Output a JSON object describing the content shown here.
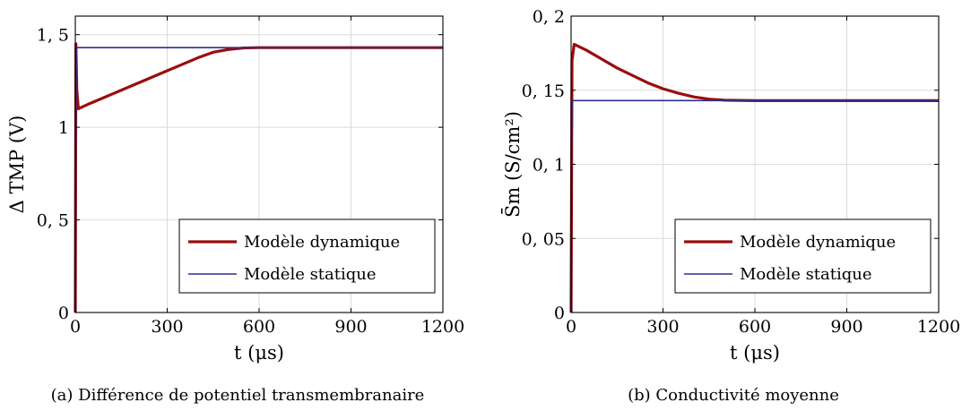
{
  "chart_data": [
    {
      "type": "line",
      "caption": "(a) Différence de potentiel transmembranaire",
      "xlabel": "t (μs)",
      "ylabel": "Δ TMP (V)",
      "xlim": [
        0,
        1200
      ],
      "ylim": [
        0,
        1.6
      ],
      "xticks": [
        0,
        300,
        600,
        900,
        1200
      ],
      "xtick_labels": [
        "0",
        "300",
        "600",
        "900",
        "1200"
      ],
      "yticks": [
        0,
        0.5,
        1,
        1.5
      ],
      "ytick_labels": [
        "0",
        "0, 5",
        "1",
        "1, 5"
      ],
      "grid": true,
      "legend_position": "bottom-right",
      "series": [
        {
          "name": "Modèle dynamique",
          "color": "#9b0d0d",
          "x": [
            0,
            2,
            5,
            10,
            50,
            100,
            150,
            200,
            250,
            300,
            350,
            400,
            450,
            500,
            550,
            600,
            700,
            800,
            900,
            1000,
            1100,
            1200
          ],
          "y": [
            0,
            1.45,
            1.2,
            1.1,
            1.13,
            1.165,
            1.2,
            1.235,
            1.27,
            1.305,
            1.34,
            1.375,
            1.405,
            1.42,
            1.428,
            1.43,
            1.43,
            1.43,
            1.43,
            1.43,
            1.43,
            1.43
          ]
        },
        {
          "name": "Modèle statique",
          "color": "#2e2e8f",
          "x": [
            0,
            1,
            3,
            1200
          ],
          "y": [
            0,
            0.8,
            1.43,
            1.43
          ]
        }
      ]
    },
    {
      "type": "line",
      "caption": "(b) Conductivité moyenne",
      "xlabel": "t (μs)",
      "ylabel": "S̄m (S/cm²)",
      "xlim": [
        0,
        1200
      ],
      "ylim": [
        0,
        0.2
      ],
      "xticks": [
        0,
        300,
        600,
        900,
        1200
      ],
      "xtick_labels": [
        "0",
        "300",
        "600",
        "900",
        "1200"
      ],
      "yticks": [
        0,
        0.05,
        0.1,
        0.15,
        0.2
      ],
      "ytick_labels": [
        "0",
        "0, 05",
        "0, 1",
        "0, 15",
        "0, 2"
      ],
      "grid": true,
      "legend_position": "bottom-right",
      "series": [
        {
          "name": "Modèle dynamique",
          "color": "#9b0d0d",
          "x": [
            0,
            3,
            10,
            50,
            100,
            150,
            200,
            250,
            300,
            350,
            400,
            450,
            500,
            600,
            700,
            800,
            900,
            1000,
            1100,
            1200
          ],
          "y": [
            0,
            0.17,
            0.181,
            0.177,
            0.171,
            0.165,
            0.16,
            0.155,
            0.151,
            0.148,
            0.1455,
            0.144,
            0.1433,
            0.143,
            0.143,
            0.143,
            0.143,
            0.143,
            0.143,
            0.143
          ]
        },
        {
          "name": "Modèle statique",
          "color": "#2e2e8f",
          "x": [
            0,
            1,
            3,
            1200
          ],
          "y": [
            0,
            0.1,
            0.143,
            0.143
          ]
        }
      ]
    }
  ]
}
